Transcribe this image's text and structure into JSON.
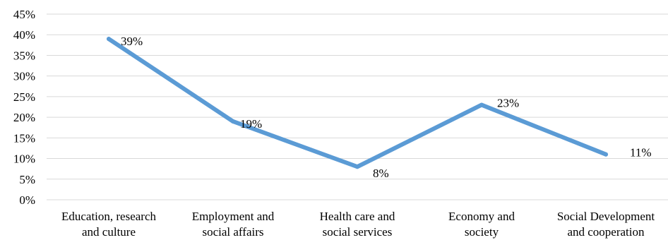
{
  "chart_data": {
    "type": "line",
    "title": "",
    "xlabel": "",
    "ylabel": "",
    "categories": [
      [
        "Education, research",
        "and culture"
      ],
      [
        "Employment and",
        "social affairs"
      ],
      [
        "Health care and",
        "social services"
      ],
      [
        "Economy and",
        "society"
      ],
      [
        "Social Development",
        "and cooperation"
      ]
    ],
    "series": [
      {
        "values": [
          39,
          19,
          8,
          23,
          11
        ],
        "data_labels": [
          "39%",
          "19%",
          "8%",
          "23%",
          "11%"
        ],
        "color": "#5b9bd5"
      }
    ],
    "ylim": [
      0,
      45
    ],
    "yticks": [
      "0%",
      "5%",
      "10%",
      "15%",
      "20%",
      "25%",
      "30%",
      "35%",
      "40%",
      "45%"
    ],
    "grid": true,
    "legend": "none"
  }
}
